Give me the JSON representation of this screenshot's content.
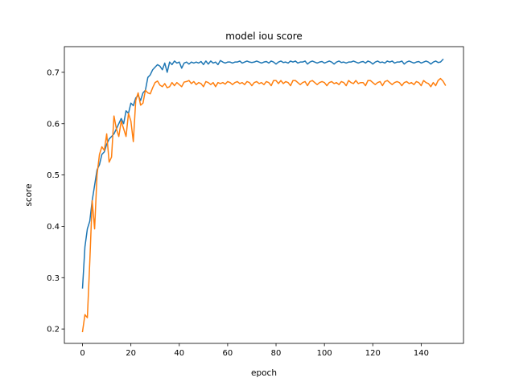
{
  "chart_data": {
    "type": "line",
    "title": "model iou score",
    "xlabel": "epoch",
    "ylabel": "score",
    "xlim": [
      -7.5,
      157.5
    ],
    "ylim": [
      0.172,
      0.75
    ],
    "xticks": [
      0,
      20,
      40,
      60,
      80,
      100,
      120,
      140
    ],
    "yticks": [
      0.2,
      0.3,
      0.4,
      0.5,
      0.6,
      0.7
    ],
    "grid": false,
    "legend": "none",
    "series": [
      {
        "color": "#1f77b4",
        "values": [
          0.28,
          0.36,
          0.395,
          0.41,
          0.45,
          0.48,
          0.51,
          0.52,
          0.54,
          0.545,
          0.56,
          0.57,
          0.575,
          0.58,
          0.59,
          0.6,
          0.61,
          0.6,
          0.625,
          0.62,
          0.64,
          0.635,
          0.65,
          0.655,
          0.645,
          0.66,
          0.665,
          0.69,
          0.695,
          0.705,
          0.71,
          0.715,
          0.712,
          0.705,
          0.718,
          0.7,
          0.72,
          0.715,
          0.722,
          0.718,
          0.72,
          0.708,
          0.718,
          0.72,
          0.716,
          0.72,
          0.718,
          0.72,
          0.718,
          0.721,
          0.715,
          0.722,
          0.716,
          0.722,
          0.718,
          0.72,
          0.715,
          0.723,
          0.72,
          0.718,
          0.72,
          0.72,
          0.718,
          0.72,
          0.72,
          0.722,
          0.718,
          0.72,
          0.722,
          0.72,
          0.719,
          0.72,
          0.722,
          0.72,
          0.718,
          0.72,
          0.721,
          0.718,
          0.722,
          0.72,
          0.716,
          0.72,
          0.722,
          0.719,
          0.72,
          0.718,
          0.722,
          0.72,
          0.722,
          0.718,
          0.72,
          0.72,
          0.722,
          0.716,
          0.72,
          0.722,
          0.72,
          0.718,
          0.72,
          0.721,
          0.718,
          0.72,
          0.722,
          0.72,
          0.716,
          0.72,
          0.722,
          0.719,
          0.72,
          0.718,
          0.72,
          0.72,
          0.722,
          0.72,
          0.718,
          0.72,
          0.721,
          0.718,
          0.722,
          0.72,
          0.716,
          0.72,
          0.722,
          0.719,
          0.72,
          0.718,
          0.722,
          0.72,
          0.722,
          0.718,
          0.72,
          0.72,
          0.722,
          0.716,
          0.72,
          0.722,
          0.72,
          0.718,
          0.72,
          0.721,
          0.718,
          0.72,
          0.722,
          0.72,
          0.716,
          0.72,
          0.722,
          0.719,
          0.72,
          0.725
        ]
      },
      {
        "color": "#ff7f0e",
        "values": [
          0.195,
          0.228,
          0.222,
          0.33,
          0.45,
          0.395,
          0.5,
          0.54,
          0.555,
          0.548,
          0.58,
          0.525,
          0.535,
          0.615,
          0.59,
          0.575,
          0.605,
          0.59,
          0.575,
          0.62,
          0.605,
          0.565,
          0.645,
          0.66,
          0.636,
          0.64,
          0.665,
          0.66,
          0.658,
          0.67,
          0.68,
          0.683,
          0.675,
          0.672,
          0.678,
          0.67,
          0.672,
          0.68,
          0.674,
          0.68,
          0.676,
          0.672,
          0.681,
          0.682,
          0.684,
          0.678,
          0.682,
          0.676,
          0.68,
          0.678,
          0.672,
          0.682,
          0.68,
          0.676,
          0.68,
          0.672,
          0.68,
          0.678,
          0.68,
          0.677,
          0.682,
          0.68,
          0.676,
          0.68,
          0.682,
          0.678,
          0.68,
          0.676,
          0.682,
          0.68,
          0.674,
          0.68,
          0.682,
          0.678,
          0.68,
          0.676,
          0.682,
          0.68,
          0.674,
          0.684,
          0.684,
          0.678,
          0.684,
          0.678,
          0.682,
          0.68,
          0.674,
          0.684,
          0.684,
          0.68,
          0.676,
          0.68,
          0.682,
          0.674,
          0.682,
          0.684,
          0.68,
          0.676,
          0.68,
          0.682,
          0.68,
          0.674,
          0.68,
          0.682,
          0.678,
          0.68,
          0.676,
          0.682,
          0.68,
          0.674,
          0.684,
          0.68,
          0.678,
          0.684,
          0.678,
          0.68,
          0.68,
          0.674,
          0.684,
          0.684,
          0.68,
          0.676,
          0.68,
          0.682,
          0.674,
          0.682,
          0.684,
          0.68,
          0.676,
          0.68,
          0.682,
          0.68,
          0.674,
          0.68,
          0.682,
          0.678,
          0.68,
          0.676,
          0.682,
          0.68,
          0.674,
          0.684,
          0.68,
          0.678,
          0.672,
          0.68,
          0.674,
          0.684,
          0.688,
          0.683,
          0.675
        ]
      }
    ]
  }
}
